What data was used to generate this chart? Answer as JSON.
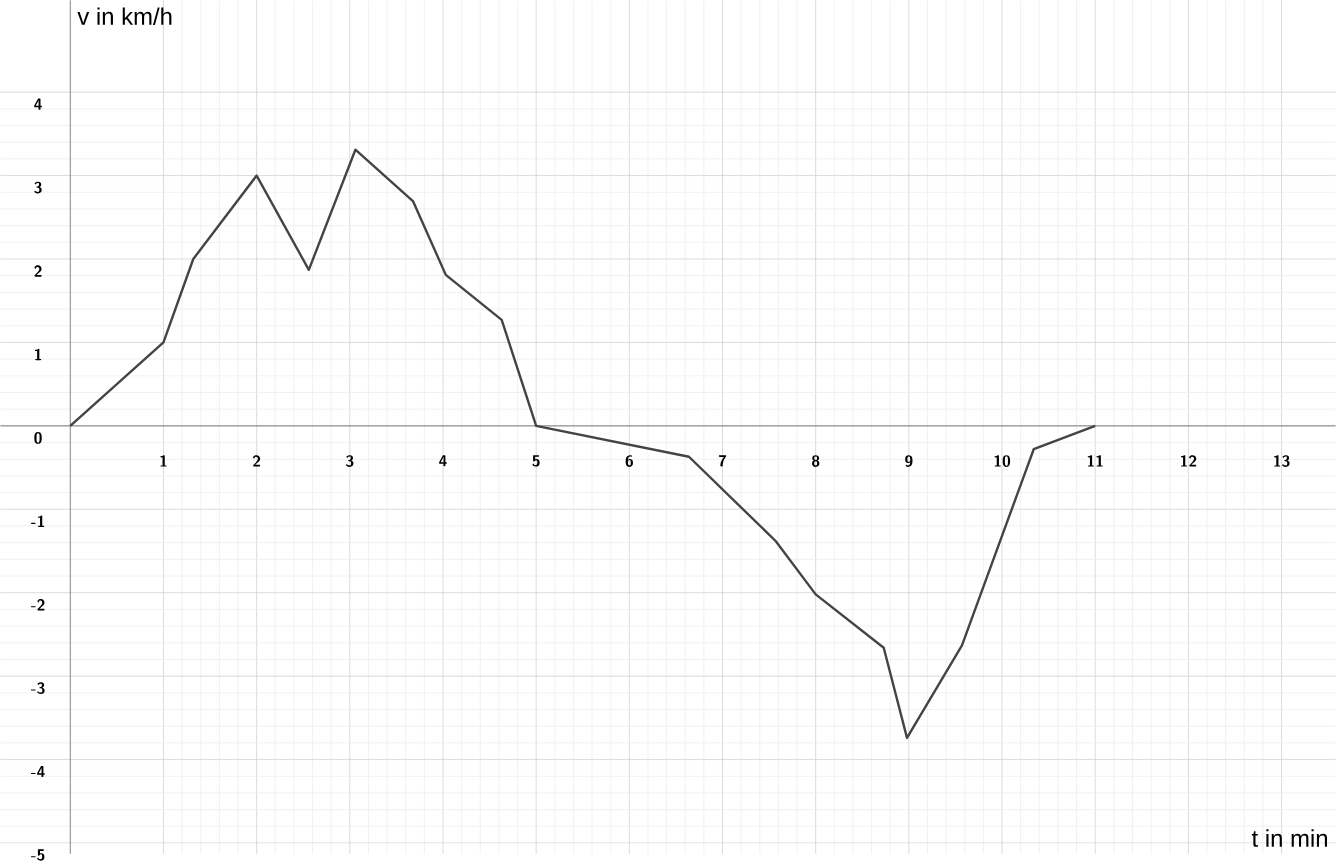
{
  "chart_data": {
    "type": "line",
    "xlabel": "t in min",
    "ylabel": "v in km/h",
    "x": [
      0,
      1,
      1.32,
      2,
      2.56,
      3.06,
      3.68,
      4.03,
      4.63,
      5,
      6.64,
      7.57,
      8,
      8.73,
      8.98,
      9.57,
      10.34,
      11
    ],
    "series": [
      {
        "color": "#444444",
        "values": [
          0,
          1,
          2,
          3,
          1.87,
          3.31,
          2.69,
          1.81,
          1.27,
          0,
          -0.37,
          -1.38,
          -2.02,
          -2.66,
          -3.74,
          -2.63,
          -0.28,
          0
        ]
      }
    ],
    "xlim": [
      -0.75,
      13.58
    ],
    "ylim": [
      -5.13,
      5.1
    ],
    "xticks": [
      1,
      2,
      3,
      4,
      5,
      6,
      7,
      8,
      9,
      10,
      11,
      12,
      13
    ],
    "yticks": [
      -5,
      -4,
      -3,
      -2,
      -1,
      0,
      1,
      2,
      3,
      4
    ],
    "grid": true,
    "marker": "none",
    "line_style": "solid"
  }
}
